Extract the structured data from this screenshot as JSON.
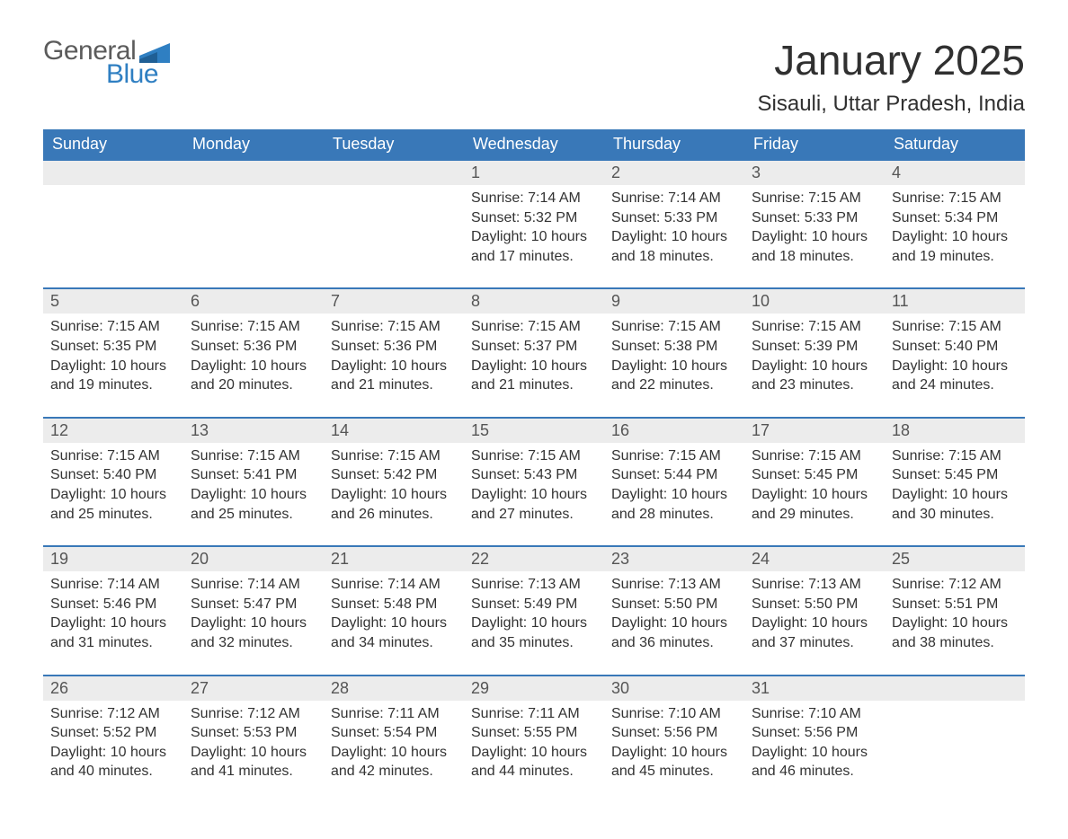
{
  "logo": {
    "word1": "General",
    "word2": "Blue",
    "accent_color": "#2f7fc2",
    "gray_color": "#5b5b5b"
  },
  "title": "January 2025",
  "location": "Sisauli, Uttar Pradesh, India",
  "colors": {
    "header_bg": "#3978b8",
    "header_text": "#ffffff",
    "daynum_bg": "#ececec",
    "border": "#3978b8",
    "text": "#333333"
  },
  "weekday_labels": [
    "Sunday",
    "Monday",
    "Tuesday",
    "Wednesday",
    "Thursday",
    "Friday",
    "Saturday"
  ],
  "labels": {
    "sunrise": "Sunrise:",
    "sunset": "Sunset:",
    "daylight": "Daylight:"
  },
  "weeks": [
    [
      null,
      null,
      null,
      {
        "n": "1",
        "sunrise": "7:14 AM",
        "sunset": "5:32 PM",
        "daylight": "10 hours and 17 minutes."
      },
      {
        "n": "2",
        "sunrise": "7:14 AM",
        "sunset": "5:33 PM",
        "daylight": "10 hours and 18 minutes."
      },
      {
        "n": "3",
        "sunrise": "7:15 AM",
        "sunset": "5:33 PM",
        "daylight": "10 hours and 18 minutes."
      },
      {
        "n": "4",
        "sunrise": "7:15 AM",
        "sunset": "5:34 PM",
        "daylight": "10 hours and 19 minutes."
      }
    ],
    [
      {
        "n": "5",
        "sunrise": "7:15 AM",
        "sunset": "5:35 PM",
        "daylight": "10 hours and 19 minutes."
      },
      {
        "n": "6",
        "sunrise": "7:15 AM",
        "sunset": "5:36 PM",
        "daylight": "10 hours and 20 minutes."
      },
      {
        "n": "7",
        "sunrise": "7:15 AM",
        "sunset": "5:36 PM",
        "daylight": "10 hours and 21 minutes."
      },
      {
        "n": "8",
        "sunrise": "7:15 AM",
        "sunset": "5:37 PM",
        "daylight": "10 hours and 21 minutes."
      },
      {
        "n": "9",
        "sunrise": "7:15 AM",
        "sunset": "5:38 PM",
        "daylight": "10 hours and 22 minutes."
      },
      {
        "n": "10",
        "sunrise": "7:15 AM",
        "sunset": "5:39 PM",
        "daylight": "10 hours and 23 minutes."
      },
      {
        "n": "11",
        "sunrise": "7:15 AM",
        "sunset": "5:40 PM",
        "daylight": "10 hours and 24 minutes."
      }
    ],
    [
      {
        "n": "12",
        "sunrise": "7:15 AM",
        "sunset": "5:40 PM",
        "daylight": "10 hours and 25 minutes."
      },
      {
        "n": "13",
        "sunrise": "7:15 AM",
        "sunset": "5:41 PM",
        "daylight": "10 hours and 25 minutes."
      },
      {
        "n": "14",
        "sunrise": "7:15 AM",
        "sunset": "5:42 PM",
        "daylight": "10 hours and 26 minutes."
      },
      {
        "n": "15",
        "sunrise": "7:15 AM",
        "sunset": "5:43 PM",
        "daylight": "10 hours and 27 minutes."
      },
      {
        "n": "16",
        "sunrise": "7:15 AM",
        "sunset": "5:44 PM",
        "daylight": "10 hours and 28 minutes."
      },
      {
        "n": "17",
        "sunrise": "7:15 AM",
        "sunset": "5:45 PM",
        "daylight": "10 hours and 29 minutes."
      },
      {
        "n": "18",
        "sunrise": "7:15 AM",
        "sunset": "5:45 PM",
        "daylight": "10 hours and 30 minutes."
      }
    ],
    [
      {
        "n": "19",
        "sunrise": "7:14 AM",
        "sunset": "5:46 PM",
        "daylight": "10 hours and 31 minutes."
      },
      {
        "n": "20",
        "sunrise": "7:14 AM",
        "sunset": "5:47 PM",
        "daylight": "10 hours and 32 minutes."
      },
      {
        "n": "21",
        "sunrise": "7:14 AM",
        "sunset": "5:48 PM",
        "daylight": "10 hours and 34 minutes."
      },
      {
        "n": "22",
        "sunrise": "7:13 AM",
        "sunset": "5:49 PM",
        "daylight": "10 hours and 35 minutes."
      },
      {
        "n": "23",
        "sunrise": "7:13 AM",
        "sunset": "5:50 PM",
        "daylight": "10 hours and 36 minutes."
      },
      {
        "n": "24",
        "sunrise": "7:13 AM",
        "sunset": "5:50 PM",
        "daylight": "10 hours and 37 minutes."
      },
      {
        "n": "25",
        "sunrise": "7:12 AM",
        "sunset": "5:51 PM",
        "daylight": "10 hours and 38 minutes."
      }
    ],
    [
      {
        "n": "26",
        "sunrise": "7:12 AM",
        "sunset": "5:52 PM",
        "daylight": "10 hours and 40 minutes."
      },
      {
        "n": "27",
        "sunrise": "7:12 AM",
        "sunset": "5:53 PM",
        "daylight": "10 hours and 41 minutes."
      },
      {
        "n": "28",
        "sunrise": "7:11 AM",
        "sunset": "5:54 PM",
        "daylight": "10 hours and 42 minutes."
      },
      {
        "n": "29",
        "sunrise": "7:11 AM",
        "sunset": "5:55 PM",
        "daylight": "10 hours and 44 minutes."
      },
      {
        "n": "30",
        "sunrise": "7:10 AM",
        "sunset": "5:56 PM",
        "daylight": "10 hours and 45 minutes."
      },
      {
        "n": "31",
        "sunrise": "7:10 AM",
        "sunset": "5:56 PM",
        "daylight": "10 hours and 46 minutes."
      },
      null
    ]
  ]
}
